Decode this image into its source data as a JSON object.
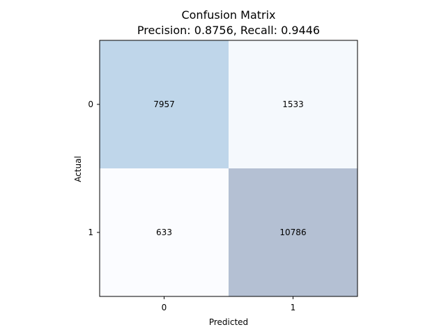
{
  "chart_data": {
    "type": "heatmap",
    "title": "Confusion Matrix",
    "subtitle": "Precision: 0.8756, Recall: 0.9446",
    "xlabel": "Predicted",
    "ylabel": "Actual",
    "x_categories": [
      "0",
      "1"
    ],
    "y_categories": [
      "0",
      "1"
    ],
    "values": [
      [
        7957,
        1533
      ],
      [
        633,
        10786
      ]
    ],
    "cell_colors": [
      [
        "#bfd6ea",
        "#f5f9fd"
      ],
      [
        "#fbfcff",
        "#b4c0d3"
      ]
    ],
    "grid": false
  }
}
